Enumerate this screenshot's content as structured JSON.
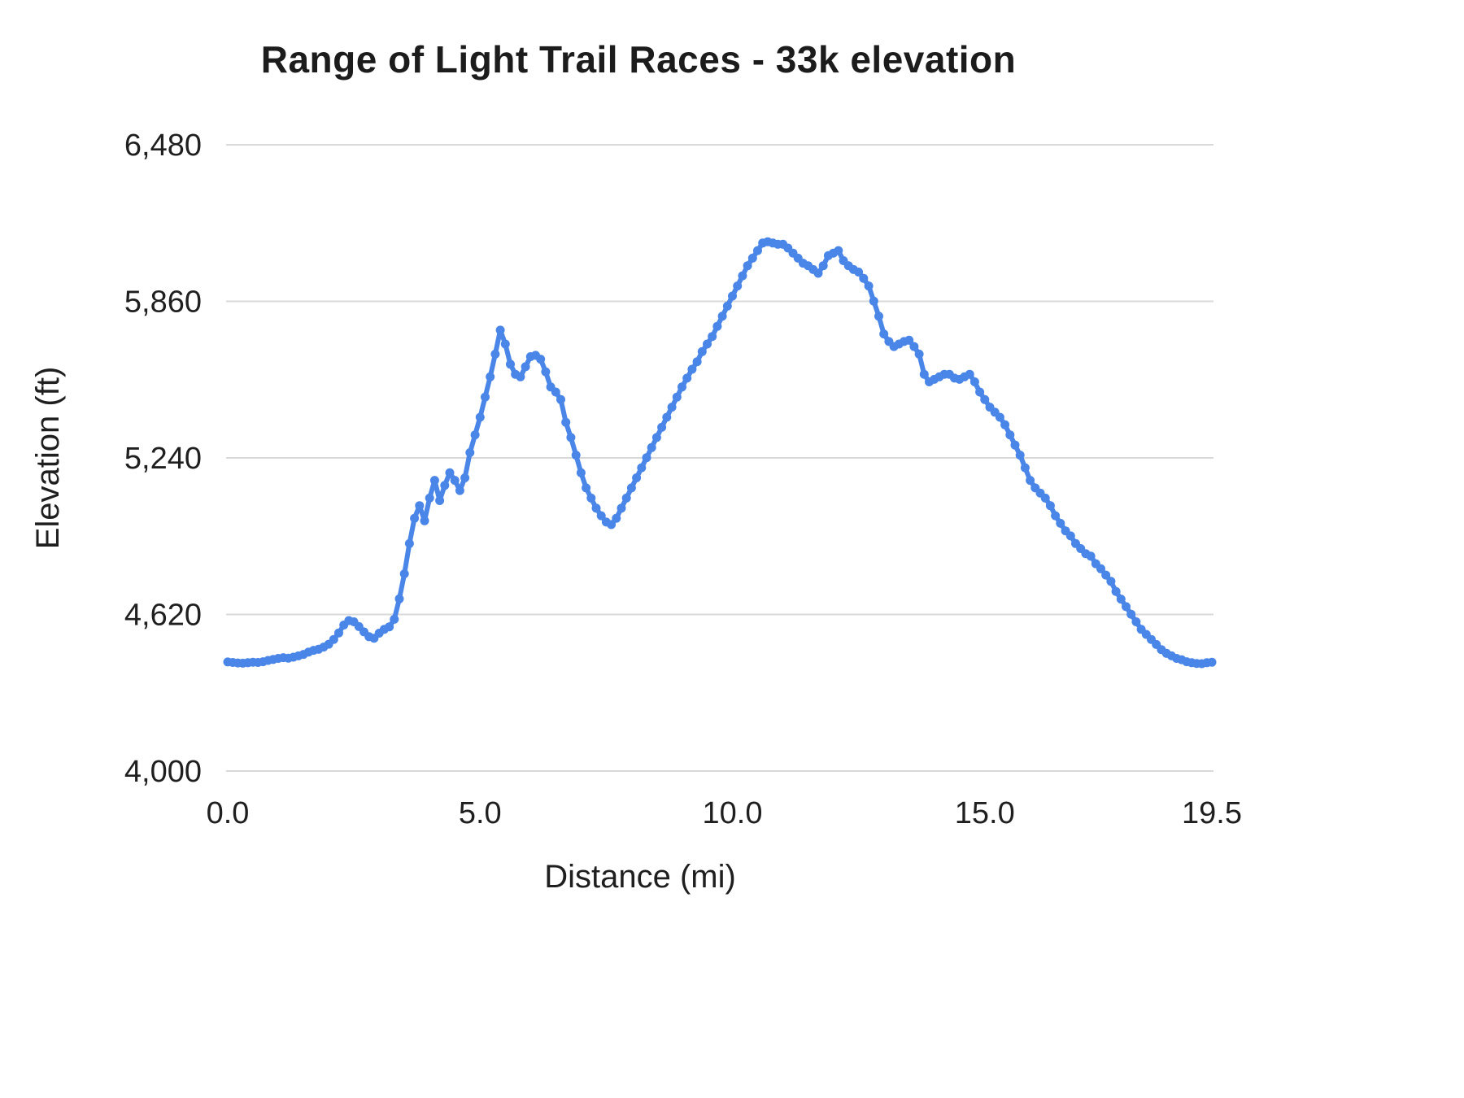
{
  "page": {
    "background": "#ffffff"
  },
  "chart_data": {
    "type": "line",
    "title": "Range of Light Trail Races - 33k elevation",
    "xlabel": "Distance (mi)",
    "ylabel": "Elevation (ft)",
    "xlim": [
      0,
      19.5
    ],
    "ylim": [
      4000,
      6480
    ],
    "grid": true,
    "legend": "none",
    "line_color": "#4a86e8",
    "grid_color": "#d9d9d9",
    "text_color": "#1f1f1f",
    "x_ticks": [
      {
        "value": 0,
        "label": "0.0"
      },
      {
        "value": 5,
        "label": "5.0"
      },
      {
        "value": 10,
        "label": "10.0"
      },
      {
        "value": 15,
        "label": "15.0"
      },
      {
        "value": 19.5,
        "label": "19.5"
      }
    ],
    "y_ticks": [
      {
        "value": 4000,
        "label": "4,000"
      },
      {
        "value": 4620,
        "label": "4,620"
      },
      {
        "value": 5240,
        "label": "5,240"
      },
      {
        "value": 5860,
        "label": "5,860"
      },
      {
        "value": 6480,
        "label": "6,480"
      }
    ],
    "series": [
      {
        "name": "Elevation",
        "x_start": 0.0,
        "x_step": 0.1,
        "elevations": [
          4432,
          4430,
          4428,
          4427,
          4429,
          4431,
          4430,
          4433,
          4438,
          4442,
          4446,
          4449,
          4447,
          4451,
          4456,
          4462,
          4471,
          4478,
          4482,
          4491,
          4502,
          4521,
          4547,
          4578,
          4596,
          4591,
          4572,
          4551,
          4532,
          4526,
          4546,
          4561,
          4571,
          4601,
          4682,
          4781,
          4901,
          5001,
          5051,
          4991,
          5081,
          5151,
          5071,
          5131,
          5181,
          5151,
          5111,
          5161,
          5261,
          5331,
          5401,
          5481,
          5561,
          5651,
          5746,
          5691,
          5611,
          5571,
          5561,
          5601,
          5641,
          5646,
          5631,
          5581,
          5521,
          5501,
          5471,
          5381,
          5321,
          5251,
          5181,
          5121,
          5081,
          5041,
          5011,
          4986,
          4976,
          5001,
          5041,
          5081,
          5121,
          5161,
          5201,
          5241,
          5281,
          5321,
          5361,
          5401,
          5441,
          5481,
          5521,
          5556,
          5591,
          5621,
          5661,
          5691,
          5721,
          5761,
          5801,
          5841,
          5881,
          5921,
          5961,
          6001,
          6031,
          6061,
          6091,
          6096,
          6091,
          6086,
          6086,
          6071,
          6051,
          6031,
          6011,
          6001,
          5986,
          5971,
          6001,
          6041,
          6051,
          6061,
          6021,
          6001,
          5986,
          5976,
          5951,
          5921,
          5861,
          5801,
          5731,
          5701,
          5681,
          5691,
          5701,
          5706,
          5681,
          5651,
          5571,
          5541,
          5551,
          5561,
          5571,
          5571,
          5556,
          5551,
          5561,
          5571,
          5541,
          5501,
          5471,
          5441,
          5421,
          5401,
          5371,
          5331,
          5291,
          5251,
          5201,
          5151,
          5121,
          5101,
          5081,
          5051,
          5011,
          4981,
          4951,
          4931,
          4901,
          4881,
          4861,
          4851,
          4821,
          4801,
          4776,
          4751,
          4711,
          4681,
          4651,
          4621,
          4591,
          4561,
          4541,
          4521,
          4501,
          4481,
          4466,
          4456,
          4446,
          4441,
          4433,
          4429,
          4426,
          4425,
          4429,
          4431
        ]
      }
    ]
  }
}
